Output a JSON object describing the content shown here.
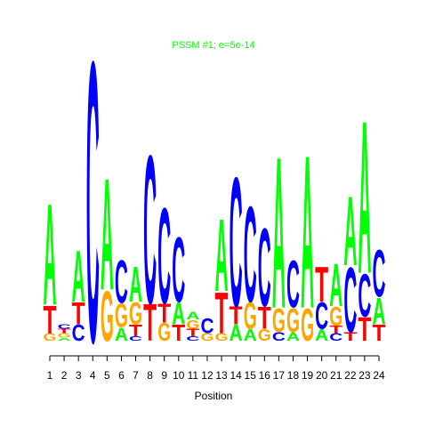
{
  "chart_data": {
    "type": "logo",
    "title": "PSSM #1; e=5e-14",
    "x_label": "Position",
    "categories": [
      "1",
      "2",
      "3",
      "4",
      "5",
      "6",
      "7",
      "8",
      "9",
      "10",
      "11",
      "12",
      "13",
      "14",
      "15",
      "16",
      "17",
      "18",
      "19",
      "20",
      "21",
      "22",
      "23",
      "24"
    ],
    "colors": {
      "A": "#00ff00",
      "C": "#0000ff",
      "G": "#ffa500",
      "T": "#ff0000"
    },
    "title_color": "#00ff00",
    "ylim": [
      0,
      2
    ],
    "columns": [
      {
        "letters": [
          "G",
          "T",
          "A"
        ],
        "values": [
          0.05,
          0.19,
          0.69
        ]
      },
      {
        "letters": [
          "A",
          "G",
          "T",
          "C"
        ],
        "values": [
          0.02,
          0.03,
          0.03,
          0.03
        ]
      },
      {
        "letters": [
          "C",
          "T",
          "A"
        ],
        "values": [
          0.11,
          0.15,
          0.35
        ]
      },
      {
        "letters": [
          "C"
        ],
        "values": [
          1.91
        ]
      },
      {
        "letters": [
          "G",
          "A"
        ],
        "values": [
          0.34,
          0.76
        ]
      },
      {
        "letters": [
          "A",
          "G",
          "C"
        ],
        "values": [
          0.09,
          0.16,
          0.29
        ]
      },
      {
        "letters": [
          "C",
          "T",
          "G",
          "A"
        ],
        "values": [
          0.03,
          0.08,
          0.15,
          0.24
        ]
      },
      {
        "letters": [
          "T",
          "C"
        ],
        "values": [
          0.25,
          1.01
        ]
      },
      {
        "letters": [
          "G",
          "T",
          "C"
        ],
        "values": [
          0.12,
          0.13,
          0.65
        ]
      },
      {
        "letters": [
          "T",
          "A",
          "C"
        ],
        "values": [
          0.11,
          0.15,
          0.44
        ]
      },
      {
        "letters": [
          "C",
          "T",
          "G",
          "A"
        ],
        "values": [
          0.03,
          0.05,
          0.06,
          0.05
        ]
      },
      {
        "letters": [
          "G",
          "C"
        ],
        "values": [
          0.05,
          0.1
        ]
      },
      {
        "letters": [
          "G",
          "T",
          "A"
        ],
        "values": [
          0.05,
          0.28,
          0.49
        ]
      },
      {
        "letters": [
          "A",
          "T",
          "C"
        ],
        "values": [
          0.11,
          0.12,
          0.88
        ]
      },
      {
        "letters": [
          "A",
          "G",
          "C"
        ],
        "values": [
          0.08,
          0.18,
          0.65
        ]
      },
      {
        "letters": [
          "G",
          "T",
          "C"
        ],
        "values": [
          0.08,
          0.15,
          0.53
        ]
      },
      {
        "letters": [
          "C",
          "G",
          "A"
        ],
        "values": [
          0.06,
          0.16,
          1.03
        ]
      },
      {
        "letters": [
          "A",
          "G",
          "C"
        ],
        "values": [
          0.06,
          0.16,
          0.32
        ]
      },
      {
        "letters": [
          "G",
          "A"
        ],
        "values": [
          0.22,
          1.04
        ]
      },
      {
        "letters": [
          "A",
          "C",
          "T"
        ],
        "values": [
          0.08,
          0.18,
          0.24
        ]
      },
      {
        "letters": [
          "C",
          "T",
          "G",
          "A"
        ],
        "values": [
          0.05,
          0.05,
          0.13,
          0.29
        ]
      },
      {
        "letters": [
          "T",
          "C",
          "A"
        ],
        "values": [
          0.06,
          0.44,
          0.47
        ]
      },
      {
        "letters": [
          "T",
          "C",
          "A"
        ],
        "values": [
          0.16,
          0.29,
          1.04
        ]
      },
      {
        "letters": [
          "T",
          "A",
          "C"
        ],
        "values": [
          0.11,
          0.18,
          0.32
        ]
      }
    ]
  }
}
